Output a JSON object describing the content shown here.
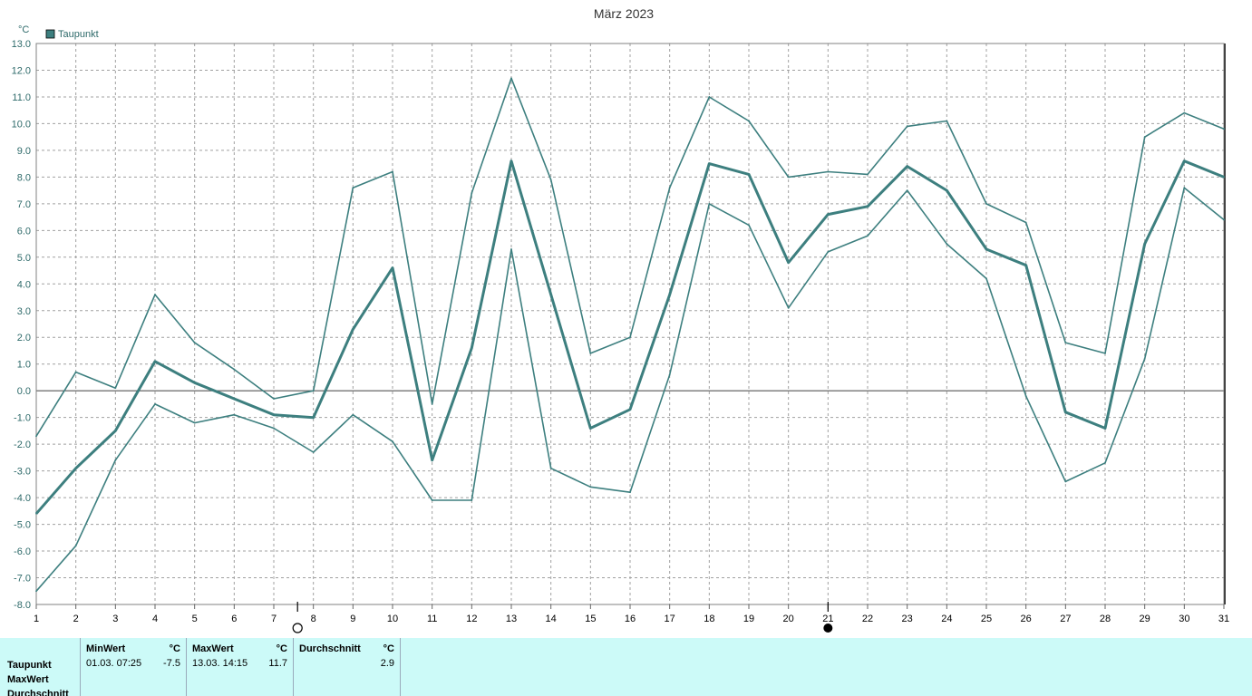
{
  "chart_data": {
    "type": "line",
    "title": "März 2023",
    "ylabel": "°C",
    "ylim": [
      -8.0,
      13.0
    ],
    "yticks": [
      "13.0",
      "12.0",
      "11.0",
      "10.0",
      "9.0",
      "8.0",
      "7.0",
      "6.0",
      "5.0",
      "4.0",
      "3.0",
      "2.0",
      "1.0",
      "0.0",
      "-1.0",
      "-2.0",
      "-3.0",
      "-4.0",
      "-5.0",
      "-6.0",
      "-7.0",
      "-8.0"
    ],
    "x": [
      1,
      2,
      3,
      4,
      5,
      6,
      7,
      8,
      9,
      10,
      11,
      12,
      13,
      14,
      15,
      16,
      17,
      18,
      19,
      20,
      21,
      22,
      23,
      24,
      25,
      26,
      27,
      28,
      29,
      30,
      31
    ],
    "grid": true,
    "legend": "top-left",
    "legend_label": "Taupunkt",
    "series": [
      {
        "name": "Taupunkt",
        "role": "avg",
        "values": [
          -4.6,
          -2.9,
          -1.5,
          1.1,
          0.3,
          -0.3,
          -0.9,
          -1.0,
          2.3,
          4.6,
          -2.6,
          1.6,
          8.6,
          3.6,
          -1.4,
          -0.7,
          3.6,
          8.5,
          8.1,
          4.8,
          6.6,
          6.9,
          8.4,
          7.5,
          5.3,
          4.7,
          -0.8,
          -1.4,
          5.5,
          8.6,
          8.0
        ]
      },
      {
        "role": "max",
        "values": [
          -1.7,
          0.7,
          0.1,
          3.6,
          1.8,
          0.8,
          -0.3,
          0.0,
          7.6,
          8.2,
          -0.5,
          7.4,
          11.7,
          7.9,
          1.4,
          2.0,
          7.6,
          11.0,
          10.1,
          8.0,
          8.2,
          8.1,
          9.9,
          10.1,
          7.0,
          6.3,
          1.8,
          1.4,
          9.5,
          10.4,
          9.8
        ]
      },
      {
        "role": "min",
        "values": [
          -7.5,
          -5.8,
          -2.6,
          -0.5,
          -1.2,
          -0.9,
          -1.4,
          -2.3,
          -0.9,
          -1.9,
          -4.1,
          -4.1,
          5.3,
          -2.9,
          -3.6,
          -3.8,
          0.6,
          7.0,
          6.2,
          3.1,
          5.2,
          5.8,
          7.5,
          5.5,
          4.2,
          -0.2,
          -3.4,
          -2.7,
          1.2,
          7.6,
          6.4
        ]
      }
    ],
    "colors": {
      "line": "#3d7f7f",
      "grid": "#a0a0a0",
      "zero": "#555555",
      "border": "#808080"
    },
    "moon_phases": [
      {
        "day": 7.6,
        "phase": "full"
      },
      {
        "day": 21.0,
        "phase": "new"
      }
    ]
  },
  "stats": {
    "row_labels": [
      "Taupunkt",
      "MaxWert",
      "Durchschnitt"
    ],
    "min": {
      "header": "MinWert",
      "unit": "°C",
      "when": "01.03.  07:25",
      "value": "-7.5"
    },
    "max": {
      "header": "MaxWert",
      "unit": "°C",
      "when": "13.03.  14:15",
      "value": "11.7"
    },
    "avg": {
      "header": "Durchschnitt",
      "unit": "°C",
      "value": "2.9"
    }
  }
}
